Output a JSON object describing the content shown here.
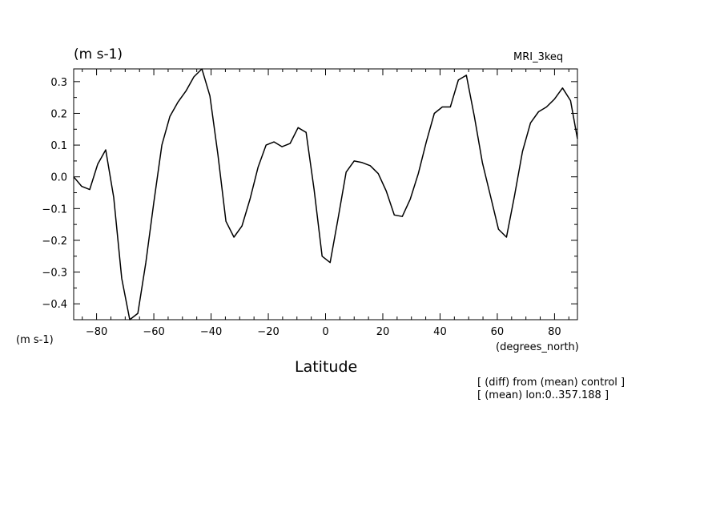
{
  "header": {
    "y_units": "(m s-1)",
    "model": "MRI_3keq"
  },
  "footer": {
    "y_units_left": "(m s-1)",
    "x_units": "(degrees_north)",
    "x_title": "Latitude",
    "notes": [
      "[ (diff) from (mean) control ]",
      "[ (mean) lon:0..357.188 ]"
    ]
  },
  "chart_data": {
    "type": "line",
    "title": "",
    "xlabel": "Latitude",
    "ylabel": "(m s-1)",
    "xlim": [
      -88,
      88
    ],
    "ylim": [
      -0.45,
      0.34
    ],
    "x_ticks": [
      -80,
      -60,
      -40,
      -20,
      0,
      20,
      40,
      60,
      80
    ],
    "x_tick_labels": [
      "−80",
      "−60",
      "−40",
      "−20",
      "0",
      "20",
      "40",
      "60",
      "80"
    ],
    "y_ticks": [
      0.3,
      0.2,
      0.1,
      0.0,
      -0.1,
      -0.2,
      -0.3,
      -0.4
    ],
    "y_tick_labels": [
      "0.3",
      "0.2",
      "0.1",
      "0.0",
      "−0.1",
      "−0.2",
      "−0.3",
      "−0.4"
    ],
    "grid": false,
    "series": [
      {
        "color": "#000000",
        "x": [
          -88.0,
          -85.2,
          -82.4,
          -79.6,
          -76.8,
          -74.0,
          -71.2,
          -68.4,
          -65.6,
          -62.8,
          -60.0,
          -57.2,
          -54.4,
          -51.6,
          -48.8,
          -46.0,
          -43.2,
          -40.4,
          -37.6,
          -34.8,
          -32.0,
          -29.2,
          -26.4,
          -23.6,
          -20.8,
          -18.0,
          -15.2,
          -12.4,
          -9.6,
          -6.8,
          -4.0,
          -1.2,
          1.6,
          4.4,
          7.2,
          10.0,
          12.8,
          15.6,
          18.4,
          21.2,
          24.0,
          26.8,
          29.6,
          32.4,
          35.2,
          38.0,
          40.8,
          43.6,
          46.4,
          49.2,
          52.0,
          54.8,
          57.6,
          60.4,
          63.2,
          66.0,
          68.8,
          71.6,
          74.4,
          77.2,
          80.0,
          82.8,
          85.6,
          88.0
        ],
        "values": [
          0.0,
          -0.03,
          -0.04,
          0.04,
          0.085,
          -0.065,
          -0.32,
          -0.45,
          -0.43,
          -0.27,
          -0.08,
          0.1,
          0.19,
          0.235,
          0.27,
          0.315,
          0.34,
          0.255,
          0.07,
          -0.14,
          -0.19,
          -0.155,
          -0.07,
          0.03,
          0.1,
          0.11,
          0.095,
          0.105,
          0.155,
          0.14,
          -0.04,
          -0.25,
          -0.27,
          -0.13,
          0.015,
          0.05,
          0.045,
          0.035,
          0.01,
          -0.045,
          -0.12,
          -0.125,
          -0.07,
          0.01,
          0.11,
          0.2,
          0.22,
          0.22,
          0.305,
          0.32,
          0.19,
          0.045,
          -0.06,
          -0.165,
          -0.19,
          -0.06,
          0.08,
          0.17,
          0.205,
          0.22,
          0.245,
          0.28,
          0.24,
          0.12
        ]
      }
    ]
  }
}
